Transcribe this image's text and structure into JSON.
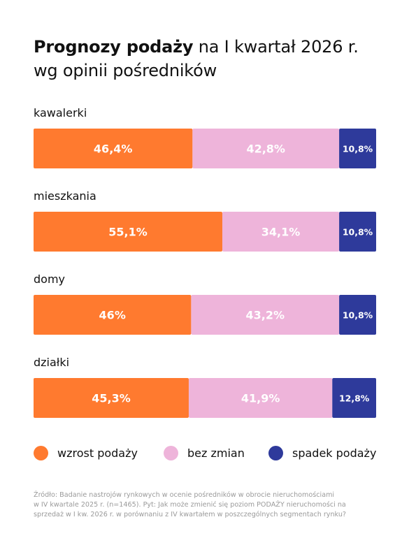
{
  "title": {
    "bold": "Prognozy podaży",
    "rest": " na I kwartał 2026 r.",
    "line2": "wg opinii pośredników"
  },
  "colors": {
    "wzrost": "#FF7A2F",
    "bez_zmian": "#EEB4DA",
    "spadek": "#2E3A9B"
  },
  "chart_data": {
    "type": "bar",
    "orientation": "horizontal",
    "stacked": true,
    "percent_stacked": true,
    "categories": [
      "kawalerki",
      "mieszkania",
      "domy",
      "działki"
    ],
    "series": [
      {
        "name": "wzrost podaży",
        "color": "#FF7A2F",
        "values": [
          46.4,
          55.1,
          46,
          45.3
        ],
        "labels": [
          "46,4%",
          "55,1%",
          "46%",
          "45,3%"
        ]
      },
      {
        "name": "bez zmian",
        "color": "#EEB4DA",
        "values": [
          42.8,
          34.1,
          43.2,
          41.9
        ],
        "labels": [
          "42,8%",
          "34,1%",
          "43,2%",
          "41,9%"
        ]
      },
      {
        "name": "spadek podaży",
        "color": "#2E3A9B",
        "values": [
          10.8,
          10.8,
          10.8,
          12.8
        ],
        "labels": [
          "10,8%",
          "10,8%",
          "10,8%",
          "12,8%"
        ]
      }
    ],
    "legend_position": "bottom"
  },
  "legend": [
    {
      "label": "wzrost podaży",
      "color": "#FF7A2F"
    },
    {
      "label": "bez zmian",
      "color": "#EEB4DA"
    },
    {
      "label": "spadek podaży",
      "color": "#2E3A9B"
    }
  ],
  "source": {
    "line1": "Źródło: Badanie nastrojów rynkowych w ocenie pośredników w obrocie nieruchomościami",
    "line2": "w IV kwartale 2025 r. (n=1465). Pyt: Jak może zmienić się poziom PODAŻY nieruchomości na",
    "line3": "sprzedaż w I kw. 2026 r. w porównaniu z IV kwartałem w poszczególnych segmentach rynku?"
  }
}
